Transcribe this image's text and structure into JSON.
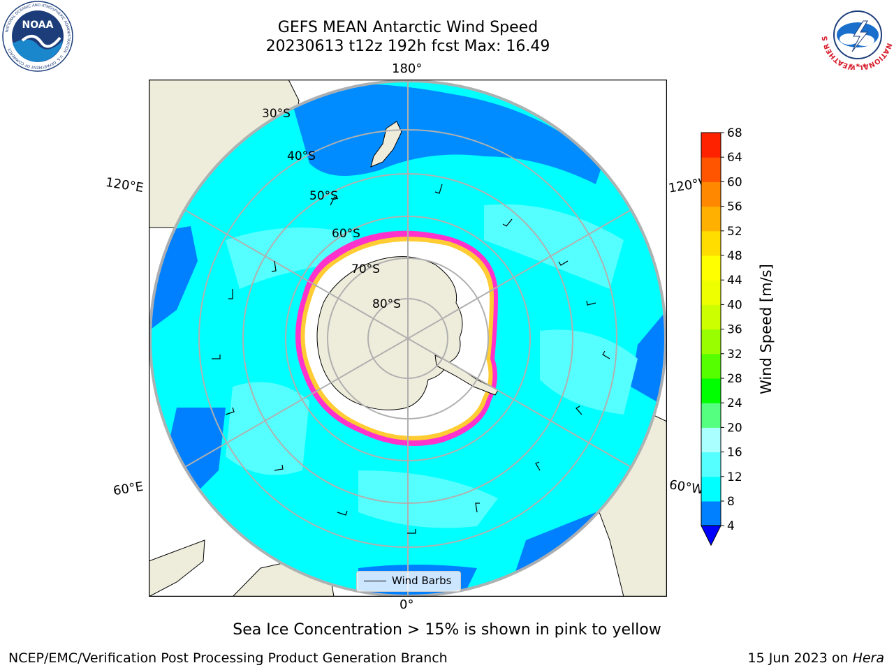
{
  "header": {
    "title": "GEFS MEAN Antarctic Wind Speed",
    "subtitle": "20230613 t12z 192h fcst   Max: 16.49"
  },
  "map": {
    "projection": "south-polar-stereographic",
    "meridian_labels": {
      "top": "180°",
      "bottom": "0°",
      "upper_left": "120°E",
      "lower_left": "60°E",
      "upper_right": "120°W",
      "lower_right": "60°W"
    },
    "parallel_labels": [
      "30°S",
      "40°S",
      "50°S",
      "60°S",
      "70°S",
      "80°S"
    ],
    "colors": {
      "land": "#eeecdb",
      "ocean_cyan": "#00ffff",
      "ocean_light": "#55ffff",
      "ocean_blue": "#0080ff",
      "sea_ice_pink": "#ff33cc",
      "sea_ice_yellow": "#ffcc33",
      "graticule": "#b0b0b0"
    },
    "legend_label": "Wind Barbs"
  },
  "colorbar": {
    "label": "Wind Speed [m/s]",
    "ticks": [
      "68",
      "64",
      "60",
      "56",
      "52",
      "48",
      "44",
      "40",
      "36",
      "32",
      "28",
      "24",
      "20",
      "16",
      "12",
      "8",
      "4"
    ],
    "colors": [
      "#0000ff",
      "#0080ff",
      "#00ffff",
      "#55ffff",
      "#aaffff",
      "#55ff80",
      "#00ff00",
      "#55ff00",
      "#99ff00",
      "#ccff00",
      "#eeff00",
      "#ffff00",
      "#ffdd00",
      "#ffb000",
      "#ff8800",
      "#ff5500",
      "#ff2200",
      "#ff0000"
    ]
  },
  "caption": "Sea Ice Concentration > 15% is shown in pink to yellow",
  "footer": {
    "left": "NCEP/EMC/Verification Post Processing Product Generation Branch",
    "right_date": "15 Jun 2023 on ",
    "right_host": "Hera"
  },
  "logos": {
    "noaa_text": "NOAA",
    "noaa_ring": "NATIONAL OCEANIC AND ATMOSPHERIC ADMINISTRATION · U.S. DEPARTMENT OF COMMERCE",
    "nws_ring": "NATIONAL WEATHER SERVICE"
  }
}
